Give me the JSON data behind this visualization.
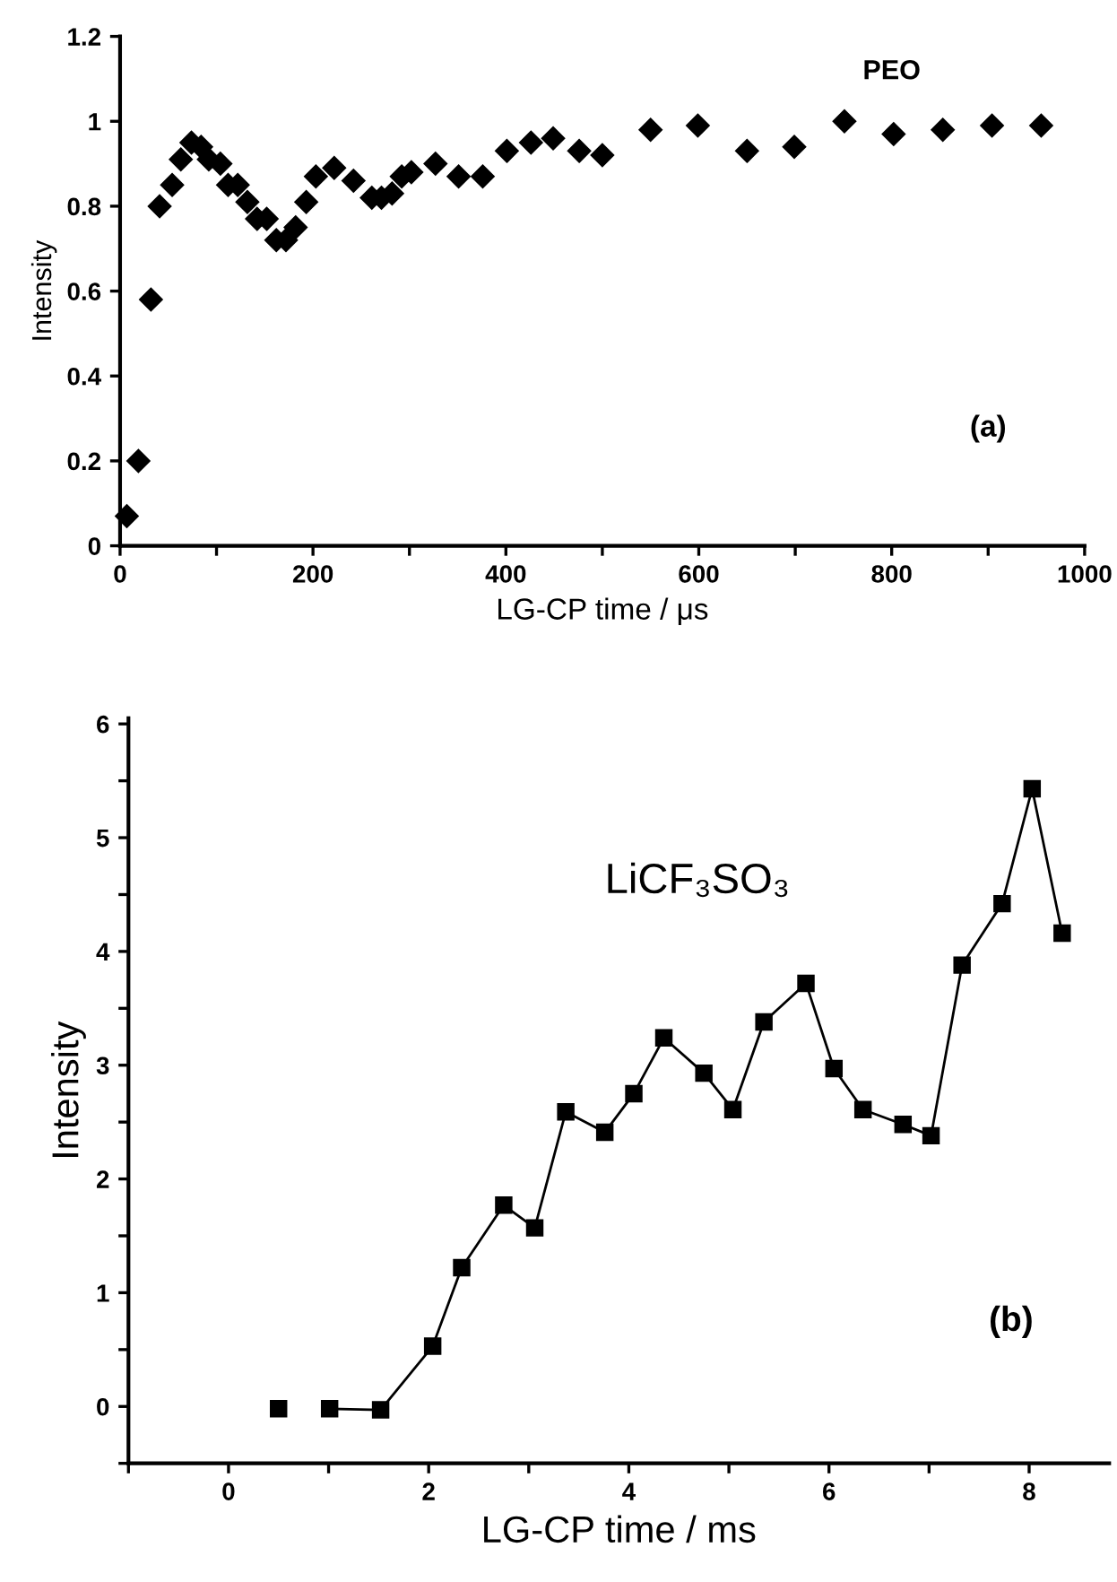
{
  "chart_data": [
    {
      "type": "scatter",
      "xlabel": "LG-CP time / μs",
      "ylabel": "Intensity",
      "annotations": [
        "PEO",
        "(a)"
      ],
      "marker": "diamond",
      "grid": false,
      "legend": false,
      "xlim": [
        0,
        1000
      ],
      "ylim": [
        0,
        1.2
      ],
      "xticks": [
        0,
        {
          "value": 100,
          "label": null
        },
        200,
        {
          "value": 300,
          "label": null
        },
        400,
        {
          "value": 500,
          "label": null
        },
        600,
        {
          "value": 700,
          "label": null
        },
        800,
        {
          "value": 900,
          "label": null
        },
        1000
      ],
      "yticks": [
        0,
        0.2,
        0.4,
        0.6,
        0.8,
        1,
        1.2
      ],
      "series": [
        {
          "color": "#000000",
          "x": [
            7,
            19,
            32,
            41,
            54,
            63,
            74,
            84,
            92,
            104,
            112,
            122,
            132,
            142,
            152,
            162,
            172,
            182,
            193,
            203,
            222,
            242,
            261,
            271,
            282,
            292,
            302,
            327,
            351,
            376,
            401,
            426,
            449,
            476,
            500,
            550,
            599,
            650,
            699,
            751,
            802,
            853,
            904,
            955
          ],
          "values": [
            0.07,
            0.2,
            0.58,
            0.8,
            0.85,
            0.91,
            0.95,
            0.94,
            0.91,
            0.9,
            0.85,
            0.85,
            0.81,
            0.77,
            0.77,
            0.72,
            0.72,
            0.75,
            0.81,
            0.87,
            0.89,
            0.86,
            0.82,
            0.82,
            0.83,
            0.87,
            0.88,
            0.9,
            0.87,
            0.87,
            0.93,
            0.95,
            0.96,
            0.93,
            0.92,
            0.98,
            0.99,
            0.93,
            0.94,
            1.0,
            0.97,
            0.98,
            0.99,
            0.99
          ]
        }
      ]
    },
    {
      "type": "line",
      "xlabel": "LG-CP time / ms",
      "ylabel": "Intensity",
      "annotations": [
        "LiCF₃SO₃",
        "(b)"
      ],
      "marker": "square",
      "line_style": "solid",
      "grid": false,
      "legend": false,
      "xlim": [
        -1,
        8.8
      ],
      "ylim": [
        -0.5,
        6.05
      ],
      "xticks": [
        {
          "value": -1,
          "label": null
        },
        0,
        {
          "value": 1,
          "label": null
        },
        2,
        {
          "value": 3,
          "label": null
        },
        4,
        {
          "value": 5,
          "label": null
        },
        6,
        {
          "value": 7,
          "label": null
        },
        8
      ],
      "yticks": [
        {
          "value": -0.5,
          "label": null
        },
        0,
        {
          "value": 0.5,
          "label": null
        },
        1,
        {
          "value": 1.5,
          "label": null
        },
        2,
        {
          "value": 2.5,
          "label": null
        },
        3,
        {
          "value": 3.5,
          "label": null
        },
        4,
        {
          "value": 4.5,
          "label": null
        },
        5,
        {
          "value": 5.5,
          "label": null
        },
        6
      ],
      "series": [
        {
          "type": "scatter",
          "color": "#000000",
          "x": [
            0.5
          ],
          "values": [
            -0.02
          ]
        },
        {
          "color": "#000000",
          "x": [
            1.01,
            1.52,
            2.04,
            2.33,
            2.75,
            3.06,
            3.37,
            3.76,
            4.05,
            4.35,
            4.75,
            5.04,
            5.35,
            5.77,
            6.05,
            6.34,
            6.74,
            7.02,
            7.33,
            7.73,
            8.03,
            8.33
          ],
          "values": [
            -0.02,
            -0.03,
            0.53,
            1.22,
            1.77,
            1.57,
            2.59,
            2.41,
            2.75,
            3.24,
            2.93,
            2.61,
            3.38,
            3.72,
            2.97,
            2.61,
            2.48,
            2.38,
            3.88,
            4.42,
            5.43,
            4.16
          ]
        }
      ]
    }
  ]
}
